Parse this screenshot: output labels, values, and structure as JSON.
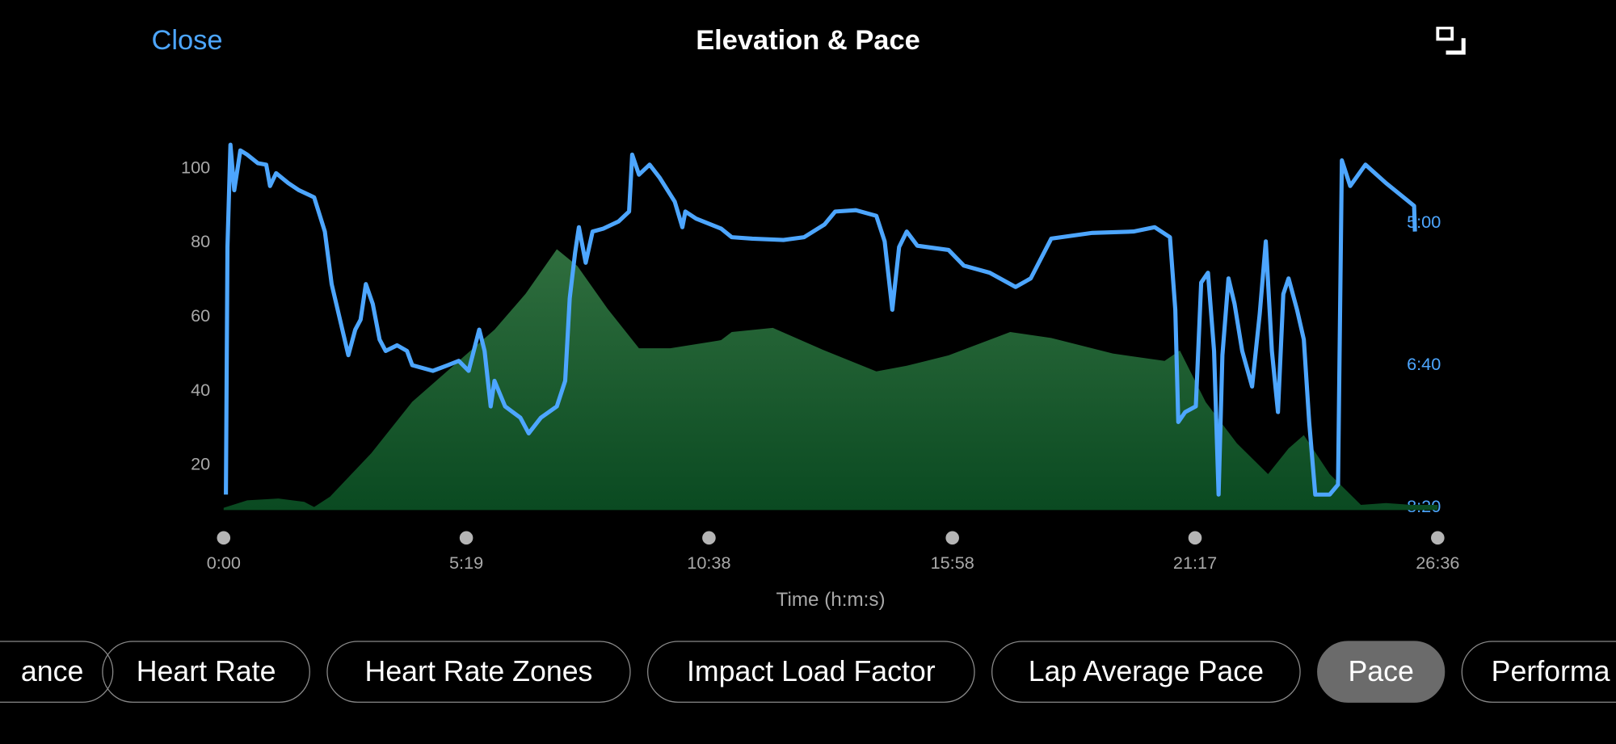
{
  "header": {
    "close_label": "Close",
    "title": "Elevation & Pace",
    "expand_icon": "expand-icon"
  },
  "colors": {
    "pace_line": "#4da6ff",
    "elevation_fill_top": "#2f6e3e",
    "elevation_fill_bottom": "#0a4a21",
    "left_axis_text": "#a8a8a8",
    "right_axis_text": "#4da6ff",
    "active_tab": "#6b6b6b"
  },
  "chart_data": {
    "type": "area+line",
    "xlabel": "Time (h:m:s)",
    "x_ticks": [
      "0:00",
      "5:19",
      "10:38",
      "15:58",
      "21:17",
      "26:36"
    ],
    "xlim": [
      "0:00",
      "26:36"
    ],
    "left_axis": {
      "ticks": [
        "20",
        "40",
        "60",
        "80",
        "100"
      ],
      "ylim": [
        7.5,
        107
      ]
    },
    "right_axis": {
      "ticks": [
        "5:00",
        "6:40",
        "8:20"
      ],
      "ylim": [
        "8:20",
        "4:04"
      ],
      "inverted": true
    },
    "grid": false,
    "series": [
      {
        "type": "area",
        "axis": "left",
        "points": [
          [
            "0:00",
            8.1
          ],
          [
            "0:31",
            10.1
          ],
          [
            "1:12",
            10.6
          ],
          [
            "1:46",
            9.7
          ],
          [
            "1:59",
            8.3
          ],
          [
            "2:20",
            11.1
          ],
          [
            "3:14",
            22.8
          ],
          [
            "4:08",
            36.7
          ],
          [
            "5:02",
            46.4
          ],
          [
            "5:56",
            56.1
          ],
          [
            "6:37",
            65.8
          ],
          [
            "7:18",
            77.8
          ],
          [
            "7:45",
            73.3
          ],
          [
            "8:25",
            61.7
          ],
          [
            "9:06",
            51.1
          ],
          [
            "9:47",
            51.1
          ],
          [
            "10:54",
            53.3
          ],
          [
            "11:08",
            55.5
          ],
          [
            "12:02",
            56.6
          ],
          [
            "13:10",
            50.5
          ],
          [
            "14:18",
            44.9
          ],
          [
            "14:58",
            46.4
          ],
          [
            "15:53",
            49.2
          ],
          [
            "17:14",
            55.5
          ],
          [
            "18:08",
            53.9
          ],
          [
            "19:29",
            49.7
          ],
          [
            "20:37",
            47.7
          ],
          [
            "20:57",
            50.5
          ],
          [
            "21:31",
            36.6
          ],
          [
            "22:12",
            25.5
          ],
          [
            "22:53",
            17.2
          ],
          [
            "23:20",
            24.1
          ],
          [
            "23:40",
            27.7
          ],
          [
            "24:14",
            17.2
          ],
          [
            "24:55",
            8.9
          ],
          [
            "25:28",
            9.4
          ],
          [
            "26:02",
            8.9
          ],
          [
            "26:36",
            8.9
          ]
        ]
      },
      {
        "type": "line",
        "axis": "right",
        "points": [
          [
            "0:03",
            "8:12"
          ],
          [
            "0:05",
            "5:18"
          ],
          [
            "0:09",
            "4:06"
          ],
          [
            "0:14",
            "4:38"
          ],
          [
            "0:22",
            "4:10"
          ],
          [
            "0:31",
            "4:13"
          ],
          [
            "0:45",
            "4:19"
          ],
          [
            "0:56",
            "4:20"
          ],
          [
            "1:01",
            "4:35"
          ],
          [
            "1:09",
            "4:26"
          ],
          [
            "1:25",
            "4:33"
          ],
          [
            "1:39",
            "4:38"
          ],
          [
            "1:59",
            "4:43"
          ],
          [
            "2:13",
            "5:07"
          ],
          [
            "2:22",
            "5:44"
          ],
          [
            "2:33",
            "6:09"
          ],
          [
            "2:44",
            "6:34"
          ],
          [
            "2:53",
            "6:16"
          ],
          [
            "3:00",
            "6:09"
          ],
          [
            "3:07",
            "5:44"
          ],
          [
            "3:16",
            "5:58"
          ],
          [
            "3:25",
            "6:23"
          ],
          [
            "3:33",
            "6:31"
          ],
          [
            "3:48",
            "6:27"
          ],
          [
            "4:01",
            "6:31"
          ],
          [
            "4:08",
            "6:41"
          ],
          [
            "4:35",
            "6:45"
          ],
          [
            "4:55",
            "6:41"
          ],
          [
            "5:09",
            "6:38"
          ],
          [
            "5:22",
            "6:45"
          ],
          [
            "5:36",
            "6:16"
          ],
          [
            "5:43",
            "6:31"
          ],
          [
            "5:51",
            "7:10"
          ],
          [
            "5:56",
            "6:52"
          ],
          [
            "6:10",
            "7:10"
          ],
          [
            "6:30",
            "7:18"
          ],
          [
            "6:41",
            "7:29"
          ],
          [
            "6:57",
            "7:18"
          ],
          [
            "7:18",
            "7:10"
          ],
          [
            "7:29",
            "6:52"
          ],
          [
            "7:35",
            "5:54"
          ],
          [
            "7:42",
            "5:22"
          ],
          [
            "7:47",
            "5:04"
          ],
          [
            "7:56",
            "5:29"
          ],
          [
            "8:05",
            "5:07"
          ],
          [
            "8:19",
            "5:05"
          ],
          [
            "8:39",
            "5:00"
          ],
          [
            "8:53",
            "4:53"
          ],
          [
            "8:57",
            "4:13"
          ],
          [
            "9:06",
            "4:27"
          ],
          [
            "9:20",
            "4:20"
          ],
          [
            "9:33",
            "4:29"
          ],
          [
            "9:53",
            "4:46"
          ],
          [
            "10:03",
            "5:04"
          ],
          [
            "10:07",
            "4:53"
          ],
          [
            "10:21",
            "4:58"
          ],
          [
            "10:54",
            "5:05"
          ],
          [
            "11:08",
            "5:11"
          ],
          [
            "11:35",
            "5:12"
          ],
          [
            "12:16",
            "5:13"
          ],
          [
            "12:43",
            "5:11"
          ],
          [
            "13:10",
            "5:02"
          ],
          [
            "13:24",
            "4:53"
          ],
          [
            "13:51",
            "4:52"
          ],
          [
            "14:18",
            "4:56"
          ],
          [
            "14:29",
            "5:14"
          ],
          [
            "14:39",
            "6:02"
          ],
          [
            "14:48",
            "5:18"
          ],
          [
            "14:58",
            "5:07"
          ],
          [
            "15:12",
            "5:17"
          ],
          [
            "15:53",
            "5:20"
          ],
          [
            "16:13",
            "5:31"
          ],
          [
            "16:47",
            "5:36"
          ],
          [
            "17:21",
            "5:46"
          ],
          [
            "17:41",
            "5:40"
          ],
          [
            "18:08",
            "5:12"
          ],
          [
            "19:02",
            "5:08"
          ],
          [
            "19:56",
            "5:07"
          ],
          [
            "20:24",
            "5:04"
          ],
          [
            "20:44",
            "5:11"
          ],
          [
            "20:51",
            "6:02"
          ],
          [
            "20:55",
            "7:21"
          ],
          [
            "21:04",
            "7:14"
          ],
          [
            "21:18",
            "7:10"
          ],
          [
            "21:25",
            "5:43"
          ],
          [
            "21:34",
            "5:36"
          ],
          [
            "21:42",
            "6:31"
          ],
          [
            "21:48",
            "8:12"
          ],
          [
            "21:53",
            "6:34"
          ],
          [
            "22:01",
            "5:40"
          ],
          [
            "22:09",
            "5:58"
          ],
          [
            "22:19",
            "6:31"
          ],
          [
            "22:32",
            "6:56"
          ],
          [
            "22:42",
            "6:05"
          ],
          [
            "22:50",
            "5:14"
          ],
          [
            "22:58",
            "6:31"
          ],
          [
            "23:06",
            "7:14"
          ],
          [
            "23:13",
            "5:51"
          ],
          [
            "23:20",
            "5:40"
          ],
          [
            "23:31",
            "6:02"
          ],
          [
            "23:40",
            "6:23"
          ],
          [
            "23:47",
            "7:21"
          ],
          [
            "23:55",
            "8:12"
          ],
          [
            "24:14",
            "8:12"
          ],
          [
            "24:25",
            "8:05"
          ],
          [
            "24:30",
            "4:17"
          ],
          [
            "24:41",
            "4:35"
          ],
          [
            "25:01",
            "4:20"
          ],
          [
            "25:28",
            "4:33"
          ],
          [
            "25:49",
            "4:42"
          ],
          [
            "26:05",
            "4:49"
          ],
          [
            "26:06",
            "5:07"
          ]
        ]
      }
    ]
  },
  "tabs": [
    {
      "label": "ance",
      "active": false
    },
    {
      "label": "Heart Rate",
      "active": false
    },
    {
      "label": "Heart Rate Zones",
      "active": false
    },
    {
      "label": "Impact Load Factor",
      "active": false
    },
    {
      "label": "Lap Average Pace",
      "active": false
    },
    {
      "label": "Pace",
      "active": true
    },
    {
      "label": "Performa",
      "active": false
    }
  ]
}
